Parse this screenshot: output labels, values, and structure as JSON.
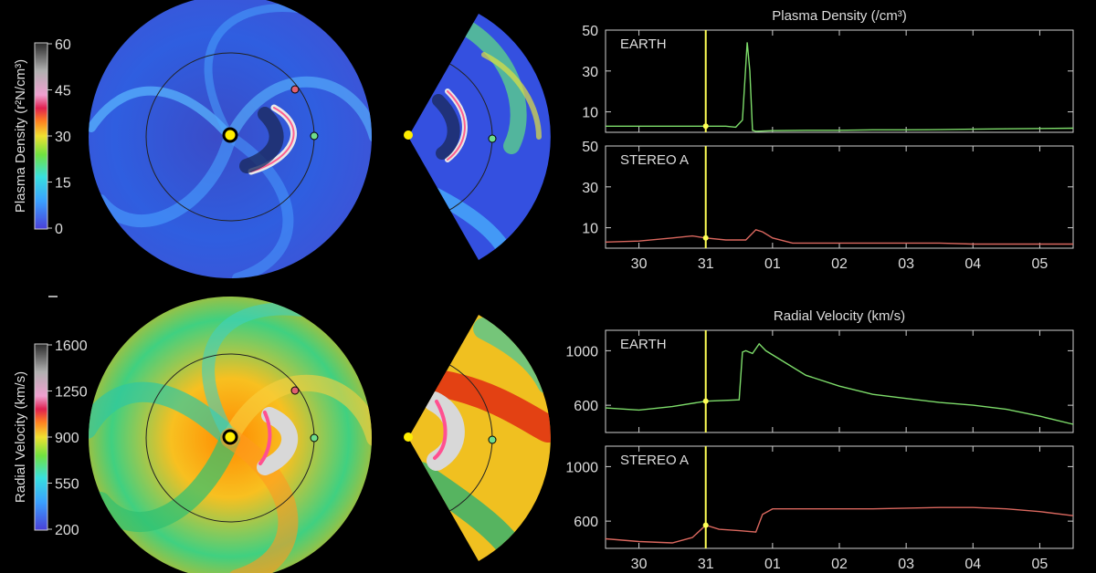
{
  "colors": {
    "background": "#000000",
    "earth_series": "#7ddc6a",
    "stereo_series": "#d9675e",
    "time_marker": "#ffff55",
    "sun": "#ffee00",
    "earth_marker": "#6fdc8c",
    "stereo_marker": "#e06070",
    "frame": "#cfcfcf"
  },
  "colorbars": {
    "density": {
      "label": "Plasma Density (r²N/cm³)",
      "ticks": [
        "60",
        "45",
        "30",
        "15",
        "0"
      ]
    },
    "velocity": {
      "label": "Radial Velocity (km/s)",
      "ticks": [
        "1600",
        "1250",
        "900",
        "550",
        "200"
      ]
    }
  },
  "maps": {
    "density_disk": {
      "icon": "solar-wind-density-disk"
    },
    "density_wedge": {
      "icon": "solar-wind-density-wedge"
    },
    "velocity_disk": {
      "icon": "solar-wind-velocity-disk"
    },
    "velocity_wedge": {
      "icon": "solar-wind-velocity-wedge"
    }
  },
  "x_ticks": [
    "30",
    "31",
    "01",
    "02",
    "03",
    "04",
    "05"
  ],
  "chart_data": [
    {
      "type": "line",
      "title": "Plasma Density (/cm³)",
      "panels": [
        {
          "label": "EARTH",
          "ylim": [
            0,
            50
          ],
          "yticks": [
            "50",
            "30",
            "10"
          ],
          "x": [
            -1.5,
            -1,
            -0.5,
            0,
            0.3,
            0.45,
            0.55,
            0.62,
            0.66,
            0.7,
            0.75,
            1,
            1.5,
            2,
            2.5,
            3,
            3.5,
            4,
            4.5,
            5.5
          ],
          "values": [
            3,
            3,
            3,
            3,
            3,
            2.5,
            6,
            44,
            30,
            1,
            0.5,
            0.8,
            1,
            1,
            1.2,
            1.2,
            1.3,
            1.5,
            1.7,
            2
          ]
        },
        {
          "label": "STEREO A",
          "ylim": [
            0,
            50
          ],
          "yticks": [
            "50",
            "30",
            "10"
          ],
          "x": [
            -1.5,
            -1,
            -0.5,
            -0.2,
            0,
            0.3,
            0.6,
            0.75,
            0.85,
            1,
            1.3,
            1.5,
            2,
            2.5,
            3,
            3.5,
            4,
            4.5,
            5,
            5.5
          ],
          "values": [
            3,
            3.5,
            5,
            6,
            5,
            4,
            4,
            9,
            8,
            5,
            2.5,
            2.5,
            2.5,
            2.5,
            2.5,
            2.5,
            2,
            2,
            2,
            2
          ]
        }
      ],
      "x_range": [
        -1.5,
        5.5
      ],
      "marker_x": 0
    },
    {
      "type": "line",
      "title": "Radial Velocity (km/s)",
      "panels": [
        {
          "label": "EARTH",
          "ylim": [
            400,
            1150
          ],
          "yticks": [
            "1000",
            "600"
          ],
          "x": [
            -1.5,
            -1,
            -0.5,
            0,
            0.5,
            0.55,
            0.6,
            0.7,
            0.8,
            0.9,
            1.5,
            2,
            2.5,
            3,
            3.5,
            4,
            4.5,
            5,
            5.5
          ],
          "values": [
            580,
            565,
            590,
            630,
            640,
            990,
            1000,
            980,
            1050,
            1000,
            820,
            740,
            680,
            650,
            620,
            600,
            570,
            520,
            460
          ],
          "note": ""
        },
        {
          "label": "STEREO A",
          "ylim": [
            400,
            1150
          ],
          "yticks": [
            "1000",
            "600"
          ],
          "x": [
            -1.5,
            -1,
            -0.5,
            -0.2,
            0,
            0.2,
            0.5,
            0.75,
            0.85,
            1,
            1.5,
            2,
            2.5,
            3,
            3.5,
            4,
            4.5,
            5,
            5.5
          ],
          "values": [
            470,
            450,
            440,
            480,
            570,
            540,
            530,
            520,
            650,
            690,
            690,
            690,
            690,
            695,
            700,
            700,
            690,
            670,
            640
          ]
        }
      ],
      "x_range": [
        -1.5,
        5.5
      ],
      "marker_x": 0
    }
  ]
}
